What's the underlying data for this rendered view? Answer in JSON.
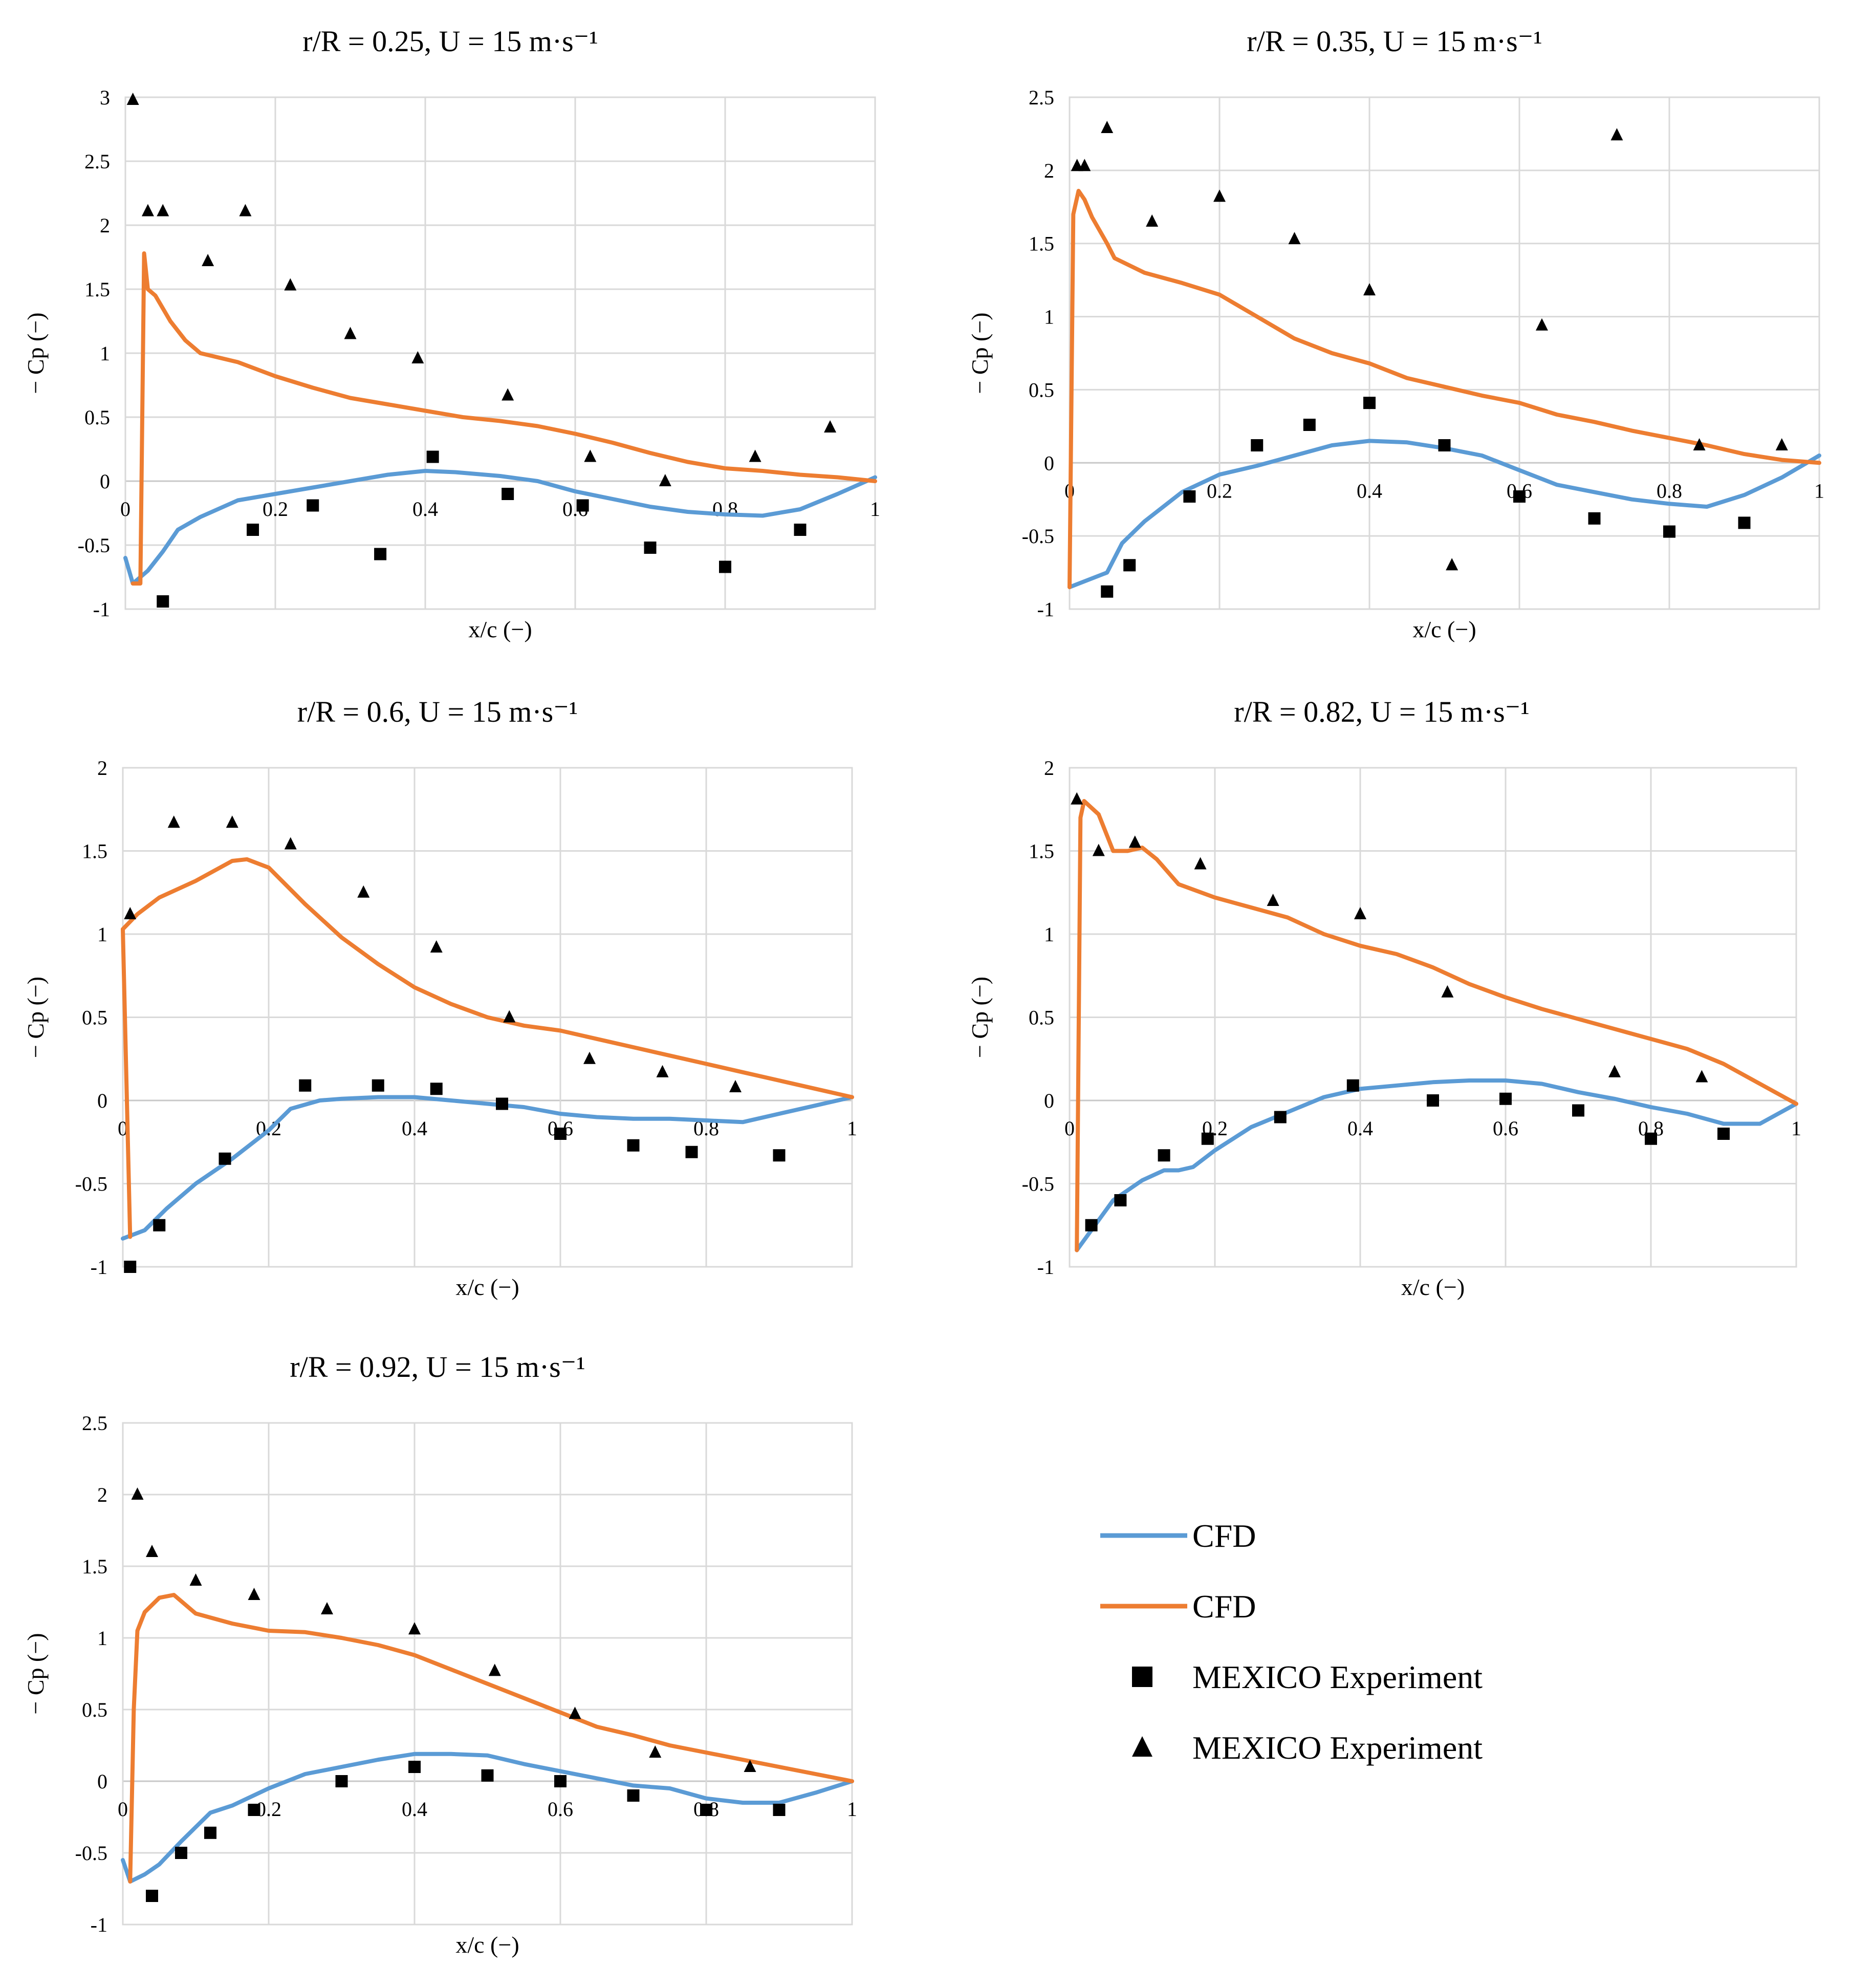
{
  "colors": {
    "blue": "#5b9bd5",
    "orange": "#ed7d31",
    "marker": "#000000"
  },
  "legend": {
    "items": [
      {
        "label": "CFD",
        "kind": "line",
        "color": "#5b9bd5"
      },
      {
        "label": "CFD",
        "kind": "line",
        "color": "#ed7d31"
      },
      {
        "label": "MEXICO Experiment",
        "kind": "square",
        "color": "#000000"
      },
      {
        "label": "MEXICO Experiment",
        "kind": "triangle",
        "color": "#000000"
      }
    ]
  },
  "chart_data": [
    {
      "type": "line+scatter",
      "title": "r/R = 0.25, U = 15 m·s⁻¹",
      "xlabel": "x/c (−)",
      "ylabel": "− Cp (−)",
      "xlim": [
        0,
        1
      ],
      "ylim": [
        -1,
        3
      ],
      "xticks": [
        "0",
        "0.2",
        "0.4",
        "0.6",
        "0.8",
        "1"
      ],
      "yticks": [
        "-1",
        "-0.5",
        "0",
        "0.5",
        "1",
        "1.5",
        "2",
        "2.5",
        "3"
      ],
      "series": [
        {
          "name": "CFD",
          "color": "#5b9bd5",
          "x": [
            0,
            0.01,
            0.02,
            0.03,
            0.05,
            0.07,
            0.1,
            0.15,
            0.2,
            0.25,
            0.3,
            0.35,
            0.4,
            0.44,
            0.5,
            0.55,
            0.6,
            0.65,
            0.7,
            0.75,
            0.8,
            0.85,
            0.9,
            0.95,
            1
          ],
          "y": [
            -0.6,
            -0.8,
            -0.75,
            -0.7,
            -0.55,
            -0.38,
            -0.28,
            -0.15,
            -0.1,
            -0.05,
            0.0,
            0.05,
            0.08,
            0.07,
            0.04,
            0.0,
            -0.08,
            -0.14,
            -0.2,
            -0.24,
            -0.26,
            -0.27,
            -0.22,
            -0.1,
            0.03
          ]
        },
        {
          "name": "CFD",
          "color": "#ed7d31",
          "x": [
            0.01,
            0.02,
            0.025,
            0.03,
            0.04,
            0.06,
            0.08,
            0.1,
            0.15,
            0.2,
            0.25,
            0.3,
            0.35,
            0.4,
            0.45,
            0.5,
            0.55,
            0.6,
            0.65,
            0.7,
            0.75,
            0.8,
            0.85,
            0.9,
            0.95,
            1
          ],
          "y": [
            -0.8,
            -0.8,
            1.78,
            1.5,
            1.45,
            1.25,
            1.1,
            1.0,
            0.93,
            0.82,
            0.73,
            0.65,
            0.6,
            0.55,
            0.5,
            0.47,
            0.43,
            0.37,
            0.3,
            0.22,
            0.15,
            0.1,
            0.08,
            0.05,
            0.03,
            0.0
          ]
        },
        {
          "name": "MEXICO Experiment",
          "marker": "square",
          "x": [
            0.05,
            0.17,
            0.25,
            0.34,
            0.41,
            0.51,
            0.61,
            0.7,
            0.8,
            0.9
          ],
          "y": [
            -0.94,
            -0.38,
            -0.19,
            -0.57,
            0.19,
            -0.1,
            -0.19,
            -0.52,
            -0.67,
            -0.38
          ]
        },
        {
          "name": "MEXICO Experiment",
          "marker": "triangle",
          "x": [
            0.01,
            0.03,
            0.05,
            0.11,
            0.16,
            0.22,
            0.3,
            0.39,
            0.51,
            0.62,
            0.72,
            0.84,
            0.94
          ],
          "y": [
            2.98,
            2.11,
            2.11,
            1.72,
            2.11,
            1.53,
            1.15,
            0.96,
            0.67,
            0.19,
            0.0,
            0.19,
            0.42
          ]
        }
      ]
    },
    {
      "type": "line+scatter",
      "title": "r/R = 0.35, U = 15 m·s⁻¹",
      "xlabel": "x/c (−)",
      "ylabel": "− Cp (−)",
      "xlim": [
        0,
        1
      ],
      "ylim": [
        -1,
        2.5
      ],
      "xticks": [
        "0",
        "0.2",
        "0.4",
        "0.6",
        "0.8",
        "1"
      ],
      "yticks": [
        "-1",
        "-0.5",
        "0",
        "0.5",
        "1",
        "1.5",
        "2",
        "2.5"
      ],
      "series": [
        {
          "name": "CFD",
          "color": "#5b9bd5",
          "x": [
            0,
            0.05,
            0.07,
            0.1,
            0.15,
            0.2,
            0.25,
            0.3,
            0.35,
            0.4,
            0.45,
            0.5,
            0.55,
            0.6,
            0.65,
            0.7,
            0.75,
            0.8,
            0.85,
            0.9,
            0.95,
            1
          ],
          "y": [
            -0.85,
            -0.75,
            -0.55,
            -0.4,
            -0.2,
            -0.08,
            -0.02,
            0.05,
            0.12,
            0.15,
            0.14,
            0.1,
            0.05,
            -0.05,
            -0.15,
            -0.2,
            -0.25,
            -0.28,
            -0.3,
            -0.22,
            -0.1,
            0.05
          ]
        },
        {
          "name": "CFD",
          "color": "#ed7d31",
          "x": [
            0,
            0.005,
            0.012,
            0.02,
            0.03,
            0.05,
            0.06,
            0.1,
            0.15,
            0.2,
            0.25,
            0.3,
            0.35,
            0.4,
            0.45,
            0.5,
            0.55,
            0.6,
            0.65,
            0.7,
            0.75,
            0.8,
            0.85,
            0.9,
            0.95,
            1
          ],
          "y": [
            -0.85,
            1.7,
            1.86,
            1.8,
            1.68,
            1.5,
            1.4,
            1.3,
            1.23,
            1.15,
            1.0,
            0.85,
            0.75,
            0.68,
            0.58,
            0.52,
            0.46,
            0.41,
            0.33,
            0.28,
            0.22,
            0.17,
            0.12,
            0.06,
            0.02,
            0.0
          ]
        },
        {
          "name": "MEXICO Experiment",
          "marker": "square",
          "x": [
            0.05,
            0.08,
            0.16,
            0.25,
            0.32,
            0.4,
            0.5,
            0.6,
            0.7,
            0.8,
            0.9
          ],
          "y": [
            -0.88,
            -0.7,
            -0.23,
            0.12,
            0.26,
            0.41,
            0.12,
            -0.23,
            -0.38,
            -0.47,
            -0.41
          ]
        },
        {
          "name": "MEXICO Experiment",
          "marker": "triangle",
          "x": [
            0.01,
            0.02,
            0.05,
            0.11,
            0.2,
            0.3,
            0.4,
            0.51,
            0.63,
            0.73,
            0.84,
            0.95
          ],
          "y": [
            2.03,
            2.03,
            2.29,
            1.65,
            1.82,
            1.53,
            1.18,
            -0.7,
            0.94,
            2.24,
            0.12,
            0.12
          ]
        }
      ]
    },
    {
      "type": "line+scatter",
      "title": "r/R = 0.6, U = 15 m·s⁻¹",
      "xlabel": "x/c (−)",
      "ylabel": "− Cp (−)",
      "xlim": [
        0,
        1
      ],
      "ylim": [
        -1,
        2
      ],
      "xticks": [
        "0",
        "0.2",
        "0.4",
        "0.6",
        "0.8",
        "1"
      ],
      "yticks": [
        "-1",
        "-0.5",
        "0",
        "0.5",
        "1",
        "1.5",
        "2"
      ],
      "series": [
        {
          "name": "CFD",
          "color": "#5b9bd5",
          "x": [
            0,
            0.03,
            0.06,
            0.1,
            0.15,
            0.2,
            0.23,
            0.27,
            0.3,
            0.35,
            0.4,
            0.45,
            0.5,
            0.55,
            0.6,
            0.65,
            0.7,
            0.75,
            0.8,
            0.85,
            0.9,
            0.95,
            1
          ],
          "y": [
            -0.83,
            -0.78,
            -0.65,
            -0.5,
            -0.35,
            -0.18,
            -0.05,
            0.0,
            0.01,
            0.02,
            0.02,
            0.0,
            -0.02,
            -0.04,
            -0.08,
            -0.1,
            -0.11,
            -0.11,
            -0.12,
            -0.13,
            -0.08,
            -0.03,
            0.02
          ]
        },
        {
          "name": "CFD",
          "color": "#ed7d31",
          "x": [
            0.01,
            0.0,
            0.02,
            0.05,
            0.1,
            0.15,
            0.17,
            0.2,
            0.25,
            0.3,
            0.35,
            0.4,
            0.45,
            0.5,
            0.55,
            0.6,
            0.65,
            0.7,
            0.75,
            0.8,
            0.85,
            0.9,
            0.95,
            1
          ],
          "y": [
            -0.82,
            1.03,
            1.12,
            1.22,
            1.32,
            1.44,
            1.45,
            1.4,
            1.18,
            0.98,
            0.82,
            0.68,
            0.58,
            0.5,
            0.45,
            0.42,
            0.37,
            0.32,
            0.27,
            0.22,
            0.17,
            0.12,
            0.07,
            0.02
          ]
        },
        {
          "name": "MEXICO Experiment",
          "marker": "square",
          "x": [
            0.01,
            0.05,
            0.14,
            0.25,
            0.35,
            0.43,
            0.52,
            0.6,
            0.7,
            0.78,
            0.9
          ],
          "y": [
            -1.0,
            -0.75,
            -0.35,
            0.09,
            0.09,
            0.07,
            -0.02,
            -0.2,
            -0.27,
            -0.31,
            -0.33
          ]
        },
        {
          "name": "MEXICO Experiment",
          "marker": "triangle",
          "x": [
            0.01,
            0.07,
            0.15,
            0.23,
            0.33,
            0.43,
            0.53,
            0.64,
            0.74,
            0.84
          ],
          "y": [
            1.12,
            1.67,
            1.67,
            1.54,
            1.25,
            0.92,
            0.5,
            0.25,
            0.17,
            0.08
          ]
        }
      ]
    },
    {
      "type": "line+scatter",
      "title": "r/R = 0.82, U = 15 m·s⁻¹",
      "xlabel": "x/c (−)",
      "ylabel": "− Cp (−)",
      "xlim": [
        0,
        1
      ],
      "ylim": [
        -1,
        2
      ],
      "xticks": [
        "0",
        "0.2",
        "0.4",
        "0.6",
        "0.8",
        "1"
      ],
      "yticks": [
        "-1",
        "-0.5",
        "0",
        "0.5",
        "1",
        "1.5",
        "2"
      ],
      "series": [
        {
          "name": "CFD",
          "color": "#5b9bd5",
          "x": [
            0.01,
            0.03,
            0.06,
            0.1,
            0.13,
            0.15,
            0.17,
            0.2,
            0.25,
            0.3,
            0.35,
            0.4,
            0.45,
            0.5,
            0.55,
            0.6,
            0.65,
            0.7,
            0.75,
            0.8,
            0.85,
            0.9,
            0.95,
            1
          ],
          "y": [
            -0.9,
            -0.78,
            -0.6,
            -0.48,
            -0.42,
            -0.42,
            -0.4,
            -0.3,
            -0.16,
            -0.07,
            0.02,
            0.07,
            0.09,
            0.11,
            0.12,
            0.12,
            0.1,
            0.05,
            0.01,
            -0.04,
            -0.08,
            -0.14,
            -0.14,
            -0.02
          ]
        },
        {
          "name": "CFD",
          "color": "#ed7d31",
          "x": [
            0.01,
            0.015,
            0.02,
            0.04,
            0.06,
            0.08,
            0.1,
            0.12,
            0.15,
            0.2,
            0.25,
            0.3,
            0.35,
            0.4,
            0.45,
            0.5,
            0.55,
            0.6,
            0.65,
            0.7,
            0.75,
            0.8,
            0.85,
            0.9,
            0.95,
            1
          ],
          "y": [
            -0.9,
            1.7,
            1.8,
            1.72,
            1.5,
            1.5,
            1.52,
            1.45,
            1.3,
            1.22,
            1.16,
            1.1,
            1.0,
            0.93,
            0.88,
            0.8,
            0.7,
            0.62,
            0.55,
            0.49,
            0.43,
            0.37,
            0.31,
            0.22,
            0.1,
            -0.02
          ]
        },
        {
          "name": "MEXICO Experiment",
          "marker": "square",
          "x": [
            0.03,
            0.07,
            0.13,
            0.19,
            0.29,
            0.39,
            0.5,
            0.6,
            0.7,
            0.8,
            0.9
          ],
          "y": [
            -0.75,
            -0.6,
            -0.33,
            -0.23,
            -0.1,
            0.09,
            0.0,
            0.01,
            -0.06,
            -0.23,
            -0.2
          ]
        },
        {
          "name": "MEXICO Experiment",
          "marker": "triangle",
          "x": [
            0.01,
            0.04,
            0.09,
            0.18,
            0.28,
            0.4,
            0.52,
            0.75,
            0.87
          ],
          "y": [
            1.81,
            1.5,
            1.55,
            1.42,
            1.2,
            1.12,
            0.65,
            0.17,
            0.14
          ]
        }
      ]
    },
    {
      "type": "line+scatter",
      "title": "r/R = 0.92, U = 15 m·s⁻¹",
      "xlabel": "x/c (−)",
      "ylabel": "− Cp (−)",
      "xlim": [
        0,
        1
      ],
      "ylim": [
        -1,
        2.5
      ],
      "xticks": [
        "0",
        "0.2",
        "0.4",
        "0.6",
        "0.8",
        "1"
      ],
      "yticks": [
        "-1",
        "-0.5",
        "0",
        "0.5",
        "1",
        "1.5",
        "2",
        "2.5"
      ],
      "series": [
        {
          "name": "CFD",
          "color": "#5b9bd5",
          "x": [
            0,
            0.01,
            0.03,
            0.05,
            0.08,
            0.12,
            0.15,
            0.2,
            0.25,
            0.3,
            0.35,
            0.4,
            0.45,
            0.5,
            0.55,
            0.6,
            0.65,
            0.7,
            0.75,
            0.8,
            0.85,
            0.9,
            0.95,
            1
          ],
          "y": [
            -0.55,
            -0.7,
            -0.65,
            -0.58,
            -0.42,
            -0.22,
            -0.17,
            -0.05,
            0.05,
            0.1,
            0.15,
            0.19,
            0.19,
            0.18,
            0.12,
            0.07,
            0.02,
            -0.03,
            -0.05,
            -0.12,
            -0.15,
            -0.15,
            -0.08,
            0.0
          ]
        },
        {
          "name": "CFD",
          "color": "#ed7d31",
          "x": [
            0.01,
            0.015,
            0.02,
            0.03,
            0.05,
            0.07,
            0.1,
            0.15,
            0.2,
            0.25,
            0.3,
            0.35,
            0.4,
            0.45,
            0.5,
            0.55,
            0.6,
            0.65,
            0.7,
            0.75,
            0.8,
            0.85,
            0.9,
            0.95,
            1
          ],
          "y": [
            -0.7,
            0.5,
            1.05,
            1.18,
            1.28,
            1.3,
            1.17,
            1.1,
            1.05,
            1.04,
            1.0,
            0.95,
            0.88,
            0.78,
            0.68,
            0.58,
            0.48,
            0.38,
            0.32,
            0.25,
            0.2,
            0.15,
            0.1,
            0.05,
            0.0
          ]
        },
        {
          "name": "MEXICO Experiment",
          "marker": "square",
          "x": [
            0.04,
            0.08,
            0.12,
            0.18,
            0.3,
            0.4,
            0.5,
            0.6,
            0.7,
            0.8,
            0.9
          ],
          "y": [
            -0.8,
            -0.5,
            -0.36,
            -0.2,
            0.0,
            0.1,
            0.04,
            0.0,
            -0.1,
            -0.2,
            -0.2
          ]
        },
        {
          "name": "MEXICO Experiment",
          "marker": "triangle",
          "x": [
            0.02,
            0.04,
            0.1,
            0.18,
            0.28,
            0.4,
            0.51,
            0.62,
            0.73,
            0.86
          ],
          "y": [
            2.0,
            1.6,
            1.4,
            1.3,
            1.2,
            1.06,
            0.77,
            0.47,
            0.2,
            0.1
          ]
        }
      ]
    }
  ]
}
